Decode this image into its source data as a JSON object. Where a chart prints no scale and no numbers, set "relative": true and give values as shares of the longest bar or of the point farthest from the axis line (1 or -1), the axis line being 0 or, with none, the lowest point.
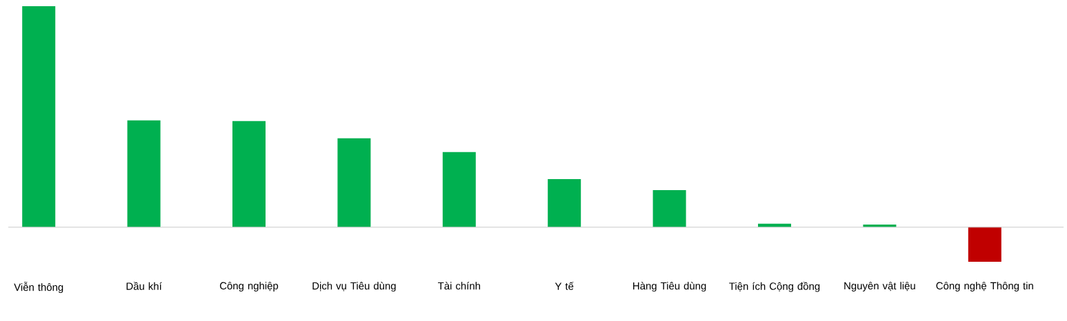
{
  "chart_data": {
    "type": "bar",
    "relative": true,
    "categories": [
      "Viễn thông",
      "Dầu khí",
      "Công nghiệp",
      "Dịch vụ Tiêu dùng",
      "Tài chính",
      "Y tế",
      "Hàng Tiêu dùng",
      "Tiện ích Cộng đồng",
      "Nguyên vật liệu",
      "Công nghệ Thông tin"
    ],
    "values": [
      1,
      0.483,
      0.48,
      0.402,
      0.34,
      0.218,
      0.168,
      0.016,
      0.012,
      -0.156
    ],
    "colors": [
      "#00b050",
      "#00b050",
      "#00b050",
      "#00b050",
      "#00b050",
      "#00b050",
      "#00b050",
      "#00b050",
      "#00b050",
      "#c00000"
    ]
  }
}
